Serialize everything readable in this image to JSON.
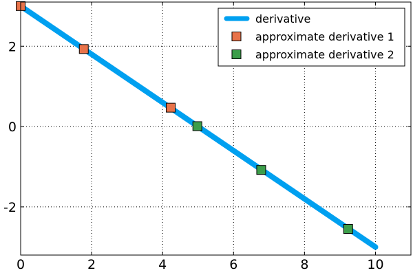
{
  "chart_data": {
    "type": "line",
    "title": "",
    "xlabel": "",
    "ylabel": "",
    "xlim": [
      0,
      11
    ],
    "ylim": [
      -3.2,
      3.1
    ],
    "xticks": [
      0,
      2,
      4,
      6,
      8,
      10
    ],
    "yticks": [
      -2,
      0,
      2
    ],
    "xtick_labels": [
      "0",
      "2",
      "4",
      "6",
      "8",
      "10"
    ],
    "ytick_labels": [
      "-2",
      "0",
      "2"
    ],
    "grid": true,
    "legend_position": "top-right",
    "series": [
      {
        "name": "derivative",
        "kind": "line",
        "color": "#00a0f0",
        "x": [
          0,
          10
        ],
        "y": [
          3,
          -3
        ]
      },
      {
        "name": "approximate derivative 1",
        "kind": "marker",
        "marker": "square",
        "color": "#e8734a",
        "x": [
          0,
          1.78,
          4.23
        ],
        "y": [
          3.0,
          1.93,
          0.47
        ]
      },
      {
        "name": "approximate derivative 2",
        "kind": "marker",
        "marker": "square",
        "color": "#3c9e4a",
        "x": [
          4.98,
          6.78,
          9.23
        ],
        "y": [
          0.01,
          -1.08,
          -2.55
        ]
      }
    ]
  }
}
